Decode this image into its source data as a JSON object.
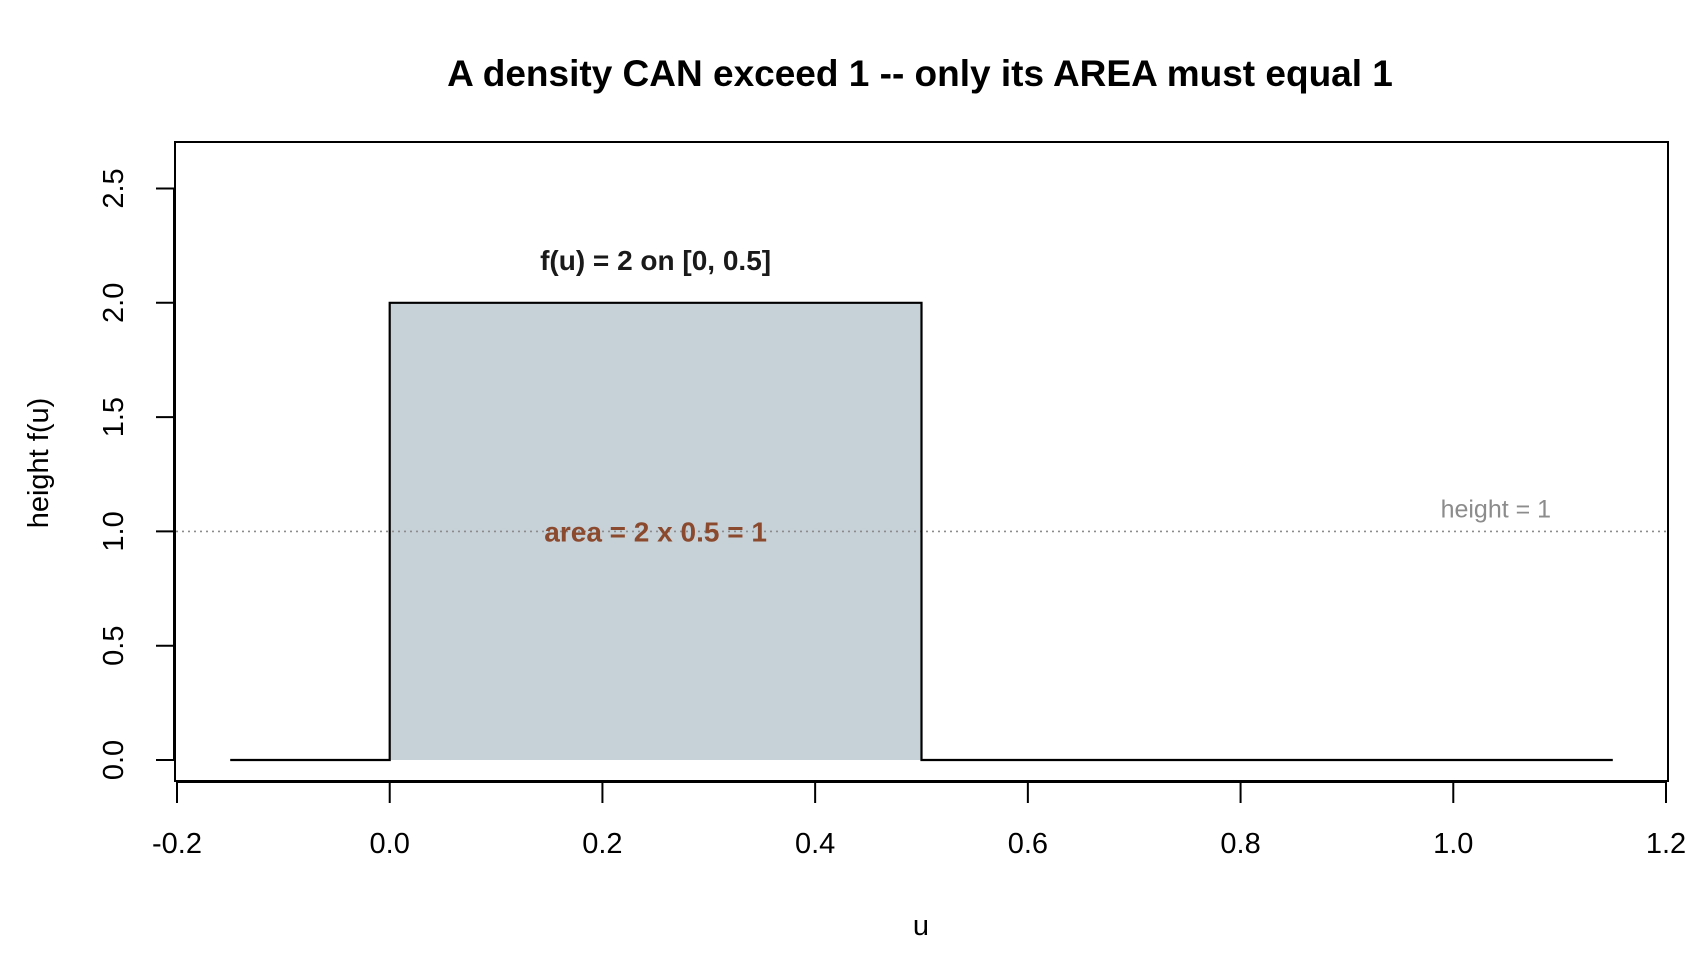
{
  "chart_data": {
    "type": "area",
    "title": "A density CAN exceed 1 -- only its AREA must equal 1",
    "xlabel": "u",
    "ylabel": "height f(u)",
    "xlim": [
      -0.2,
      1.2
    ],
    "ylim": [
      0.0,
      2.6
    ],
    "x_ticks": [
      -0.2,
      0.0,
      0.2,
      0.4,
      0.6,
      0.8,
      1.0,
      1.2
    ],
    "x_tick_labels": [
      "-0.2",
      "0.0",
      "0.2",
      "0.4",
      "0.6",
      "0.8",
      "1.0",
      "1.2"
    ],
    "y_ticks": [
      0.0,
      0.5,
      1.0,
      1.5,
      2.0,
      2.5
    ],
    "y_tick_labels": [
      "0.0",
      "0.5",
      "1.0",
      "1.5",
      "2.0",
      "2.5"
    ],
    "grid": false,
    "series": [
      {
        "x": [
          -0.15,
          0.0,
          0.0,
          0.5,
          0.5,
          1.15
        ],
        "y": [
          0.0,
          0.0,
          2.0,
          2.0,
          0.0,
          0.0
        ]
      }
    ],
    "shaded_region": {
      "x": [
        0.0,
        0.5
      ],
      "y": [
        0.0,
        2.0
      ],
      "fill": "#c6d1d8"
    },
    "reference_line": {
      "y": 1.0,
      "label": "height = 1",
      "color": "#8c8c8c"
    },
    "annotations": [
      {
        "text": "f(u) = 2 on [0, 0.5]",
        "x": 0.25,
        "y": 2.2,
        "color": "#1a1a1a"
      },
      {
        "text": "area = 2 x 0.5 = 1",
        "x": 0.25,
        "y": 1.0,
        "color": "#8b4a2e"
      }
    ]
  }
}
